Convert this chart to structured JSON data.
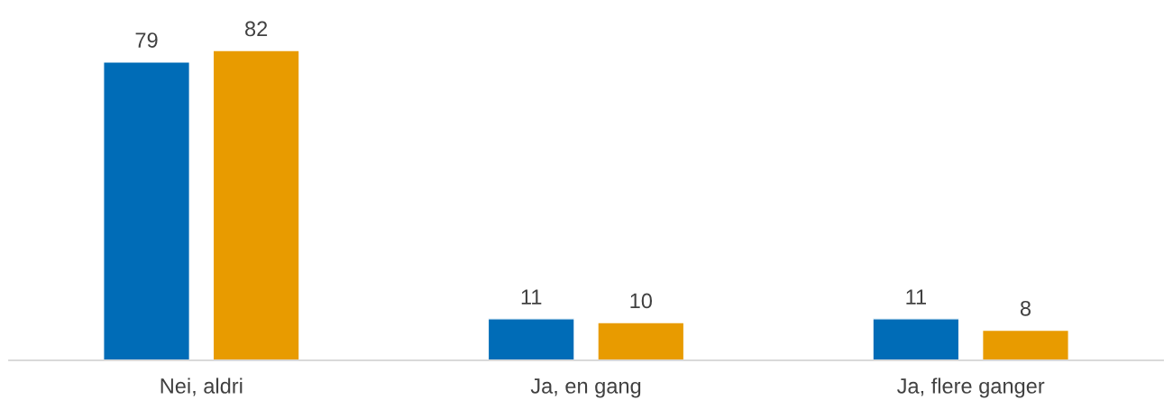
{
  "chart_data": {
    "type": "bar",
    "categories": [
      "Nei, aldri",
      "Ja, en gang",
      "Ja, flere ganger"
    ],
    "series": [
      {
        "color": "#006cb7",
        "values": [
          79,
          11,
          11
        ]
      },
      {
        "color": "#e89b00",
        "values": [
          82,
          10,
          8
        ]
      }
    ],
    "data_labels": true
  }
}
